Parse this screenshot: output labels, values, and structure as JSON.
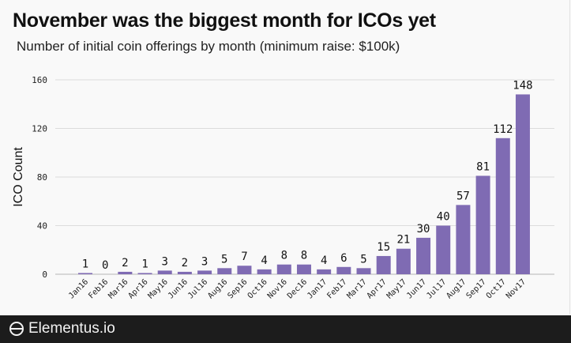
{
  "chart_data": {
    "type": "bar",
    "title": "November was the biggest month for ICOs yet",
    "subtitle": "Number of initial coin offerings by month (minimum raise: $100k)",
    "xlabel": "",
    "ylabel": "ICO Count",
    "ylim": [
      0,
      160
    ],
    "yticks": [
      0,
      40,
      80,
      120,
      160
    ],
    "grid": true,
    "bar_color": "#7f6bb3",
    "categories": [
      "Jan16",
      "Feb16",
      "Mar16",
      "Apr16",
      "May16",
      "Jun16",
      "Jul16",
      "Aug16",
      "Sep16",
      "Oct16",
      "Nov16",
      "Dec16",
      "Jan17",
      "Feb17",
      "Mar17",
      "Apr17",
      "May17",
      "Jun17",
      "Jul17",
      "Aug17",
      "Sep17",
      "Oct17",
      "Nov17"
    ],
    "values": [
      1,
      0,
      2,
      1,
      3,
      2,
      3,
      5,
      7,
      4,
      8,
      8,
      4,
      6,
      5,
      15,
      21,
      30,
      40,
      57,
      81,
      112,
      148
    ]
  },
  "footer": {
    "brand": "Elementus.io",
    "logo_icon": "elementus-logo-icon"
  }
}
